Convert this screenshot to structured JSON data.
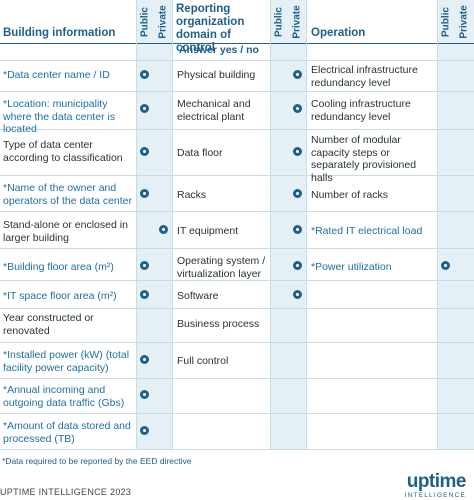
{
  "headers": {
    "building": "Building information",
    "public": "Public",
    "private": "Private",
    "domain": "Reporting organization domain of control",
    "operation": "Operation",
    "answer": "Answer yes / no"
  },
  "building": [
    "*Data center name / ID",
    "*Location: municipality where the data center is located",
    "Type of data center according to classification",
    "*Name of the owner and operators of the data center",
    "Stand-alone or enclosed in larger building",
    "*Building floor area (m²)",
    "*IT space floor area (m²)",
    "Year constructed or renovated",
    "*Installed power (kW) (total facility power capacity)",
    "*Annual incoming and outgoing data traffic (Gbs)",
    "*Amount of data stored and processed (TB)"
  ],
  "domain": [
    "Physical building",
    "Mechanical and electrical plant",
    "Data floor",
    "Racks",
    "IT equipment",
    "Operating system / virtualization layer",
    "Software",
    "Business process",
    "Full control"
  ],
  "operation": [
    "Electrical infrastructure redundancy level",
    "Cooling infrastructure redundancy level",
    "Number of modular capacity steps or separately provisioned halls",
    "Number of racks",
    "*Rated IT electrical load",
    "*Power utilization"
  ],
  "footnote": "*Data required to be reported by the EED directive",
  "credit": "UPTIME INTELLIGENCE 2023",
  "logo": {
    "word": "uptime",
    "sub": "INTELLIGENCE"
  },
  "colors": {
    "accent": "#1f5f8a",
    "required_text": "#1f6fa3",
    "shade": "#e5f0f6",
    "grid": "#c9dbe6"
  }
}
